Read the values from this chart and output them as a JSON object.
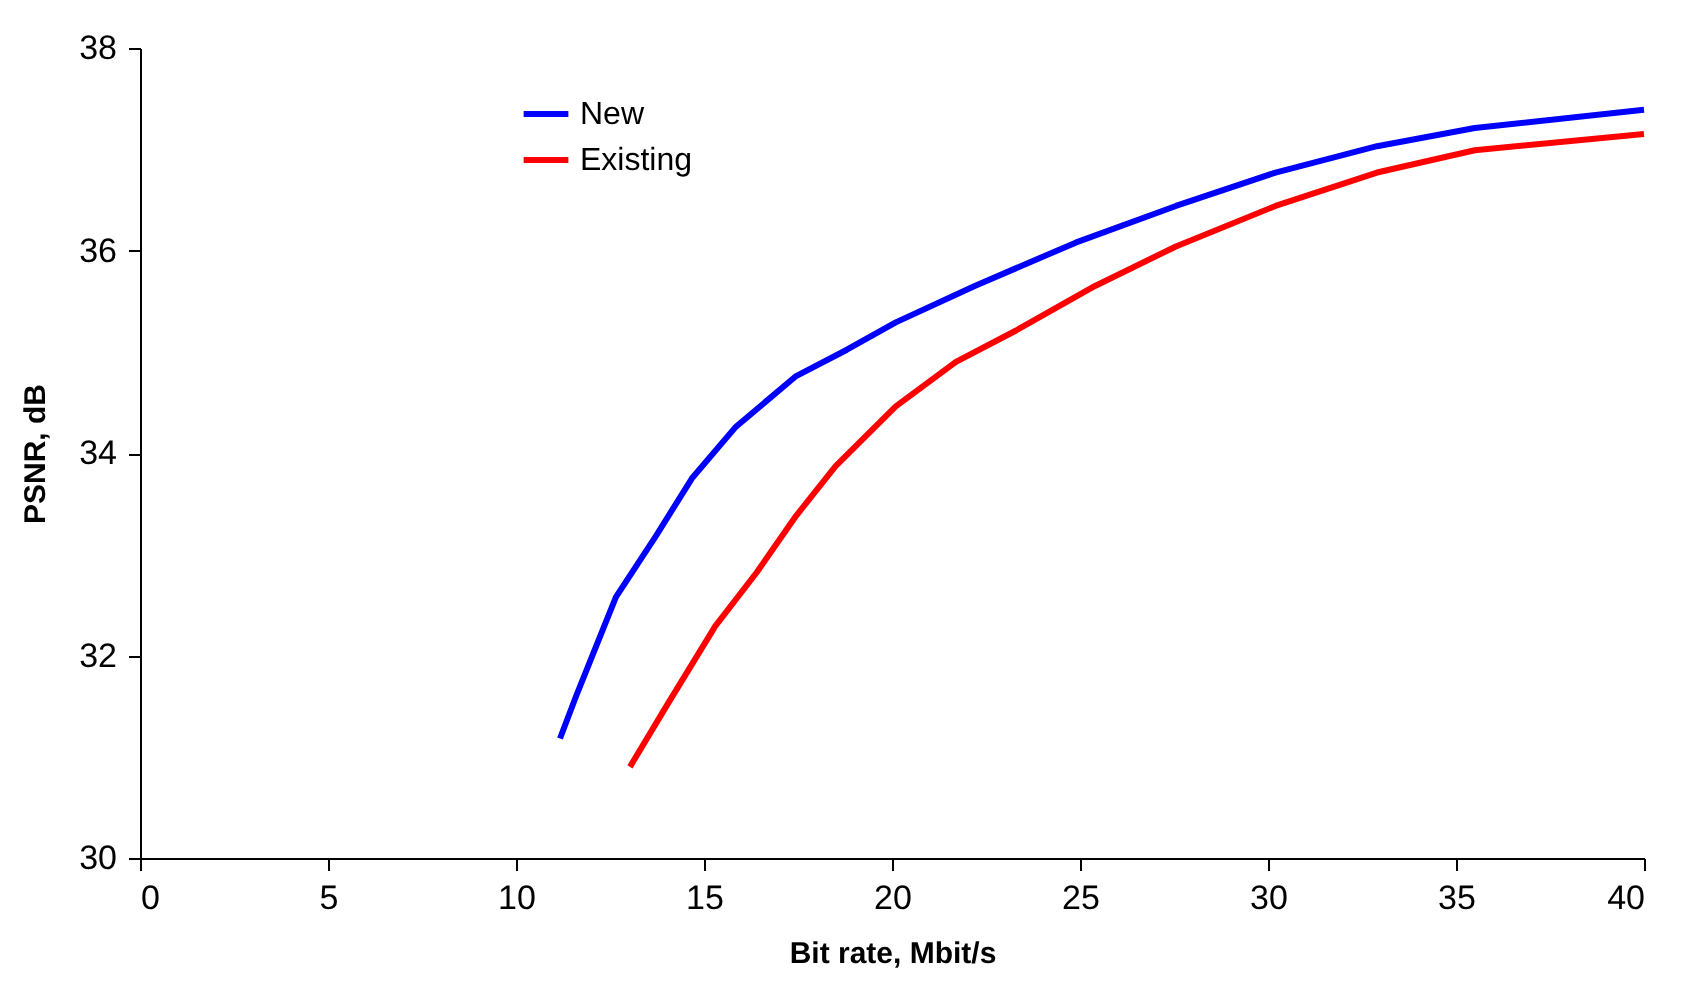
{
  "chart_data": {
    "type": "line",
    "xlabel": "Bit rate, Mbit/s",
    "ylabel": "PSNR, dB",
    "xlim": [
      0,
      40
    ],
    "xticks": [
      0,
      5,
      10,
      15,
      20,
      25,
      30,
      35,
      40
    ],
    "ylim": [
      30,
      38
    ],
    "yticks": [
      30,
      32,
      34,
      36,
      38
    ],
    "grid": false,
    "legend": "top left",
    "marker": "none",
    "line_style": "solid",
    "series": [
      {
        "name": "New",
        "color": "#0000ff",
        "x": [
          11.17,
          11.6,
          12.13,
          12.66,
          13.72,
          14.68,
          15.85,
          17.45,
          18.8,
          20.1,
          22.2,
          24.9,
          27.55,
          30.2,
          32.9,
          35.5,
          40
        ],
        "values": [
          31.18,
          31.6,
          32.09,
          32.58,
          33.18,
          33.75,
          34.26,
          34.76,
          35.02,
          35.29,
          35.65,
          36.08,
          36.44,
          36.77,
          37.03,
          37.21,
          37.39
        ]
      },
      {
        "name": "Existing",
        "color": "#ff0000",
        "x": [
          13.03,
          14.0,
          15.3,
          16.4,
          17.45,
          18.5,
          20.1,
          21.7,
          23.3,
          25.4,
          27.55,
          30.2,
          32.9,
          35.5,
          40
        ],
        "values": [
          30.9,
          31.5,
          32.29,
          32.82,
          33.38,
          33.87,
          34.46,
          34.9,
          35.21,
          35.65,
          36.04,
          36.44,
          36.77,
          36.99,
          37.15
        ]
      }
    ]
  }
}
